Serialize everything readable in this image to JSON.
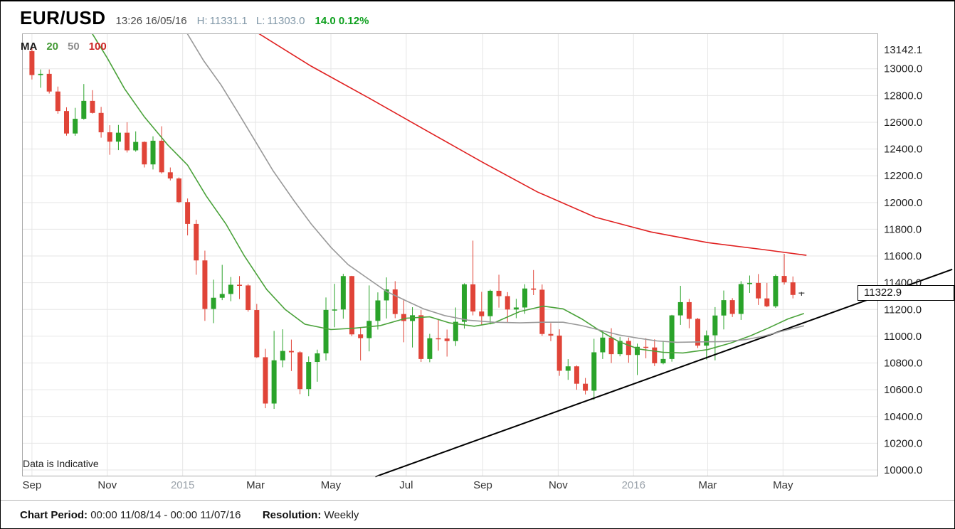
{
  "header": {
    "symbol": "EUR/USD",
    "timestamp": "13:26 16/05/16",
    "high_label": "H:",
    "high": "11331.1",
    "low_label": "L:",
    "low": "11303.0",
    "change": "14.0",
    "change_pct": "0.12%"
  },
  "legend": {
    "ma_label": "MA",
    "periods": [
      {
        "label": "20",
        "color": "#449a35"
      },
      {
        "label": "50",
        "color": "#8c8c8c"
      },
      {
        "label": "100",
        "color": "#cc2424"
      }
    ]
  },
  "watermark": "Data is Indicative",
  "price_tag": "11322.9",
  "footer": {
    "period_label": "Chart Period:",
    "period_value": "00:00 11/08/14 - 00:00 11/07/16",
    "resolution_label": "Resolution:",
    "resolution_value": "Weekly"
  },
  "chart_data": {
    "type": "candlestick",
    "symbol": "EUR/USD",
    "resolution": "Weekly",
    "last_price": 11322.9,
    "x_axis": {
      "start": "2014-08-24",
      "end": "2016-07-17",
      "ticks": [
        {
          "label": "Sep",
          "date": "2014-09-01",
          "muted": false
        },
        {
          "label": "Nov",
          "date": "2014-11-01",
          "muted": false
        },
        {
          "label": "2015",
          "date": "2015-01-01",
          "muted": true
        },
        {
          "label": "Mar",
          "date": "2015-03-01",
          "muted": false
        },
        {
          "label": "May",
          "date": "2015-05-01",
          "muted": false
        },
        {
          "label": "Jul",
          "date": "2015-07-01",
          "muted": false
        },
        {
          "label": "Sep",
          "date": "2015-09-01",
          "muted": false
        },
        {
          "label": "Nov",
          "date": "2015-11-01",
          "muted": false
        },
        {
          "label": "2016",
          "date": "2016-01-01",
          "muted": true
        },
        {
          "label": "Mar",
          "date": "2016-03-01",
          "muted": false
        },
        {
          "label": "May",
          "date": "2016-05-01",
          "muted": false
        }
      ]
    },
    "y_axis": {
      "labels": [
        "13142.1",
        "13000.0",
        "12800.0",
        "12600.0",
        "12400.0",
        "12200.0",
        "12000.0",
        "11800.0",
        "11600.0",
        "11400.0",
        "11200.0",
        "11000.0",
        "10800.0",
        "10600.0",
        "10400.0",
        "10200.0",
        "10000.0"
      ]
    },
    "candles": [
      [
        "2014-09-01",
        13132,
        13160,
        12920,
        12953
      ],
      [
        "2014-09-08",
        12953,
        12995,
        12858,
        12962
      ],
      [
        "2014-09-15",
        12962,
        12995,
        12815,
        12830
      ],
      [
        "2014-09-22",
        12830,
        12867,
        12664,
        12684
      ],
      [
        "2014-09-29",
        12684,
        12712,
        12500,
        12516
      ],
      [
        "2014-10-06",
        12516,
        12708,
        12499,
        12626
      ],
      [
        "2014-10-13",
        12626,
        12886,
        12619,
        12760
      ],
      [
        "2014-10-20",
        12760,
        12840,
        12665,
        12670
      ],
      [
        "2014-10-27",
        12670,
        12715,
        12485,
        12525
      ],
      [
        "2014-11-03",
        12525,
        12578,
        12357,
        12455
      ],
      [
        "2014-11-10",
        12455,
        12580,
        12392,
        12522
      ],
      [
        "2014-11-17",
        12522,
        12600,
        12374,
        12390
      ],
      [
        "2014-11-24",
        12390,
        12532,
        12380,
        12453
      ],
      [
        "2014-12-01",
        12453,
        12457,
        12262,
        12285
      ],
      [
        "2014-12-08",
        12285,
        12495,
        12247,
        12462
      ],
      [
        "2014-12-15",
        12462,
        12570,
        12216,
        12226
      ],
      [
        "2014-12-22",
        12226,
        12262,
        12165,
        12180
      ],
      [
        "2014-12-29",
        12180,
        12188,
        11996,
        12003
      ],
      [
        "2015-01-05",
        12003,
        12030,
        11754,
        11840
      ],
      [
        "2015-01-12",
        11840,
        11871,
        11460,
        11567
      ],
      [
        "2015-01-19",
        11567,
        11640,
        11115,
        11204
      ],
      [
        "2015-01-26",
        11204,
        11423,
        11098,
        11288
      ],
      [
        "2015-02-02",
        11288,
        11534,
        11270,
        11316
      ],
      [
        "2015-02-09",
        11316,
        11443,
        11262,
        11385
      ],
      [
        "2015-02-16",
        11385,
        11450,
        11278,
        11380
      ],
      [
        "2015-02-23",
        11380,
        11390,
        11184,
        11196
      ],
      [
        "2015-03-02",
        11196,
        11242,
        10838,
        10843
      ],
      [
        "2015-03-09",
        10843,
        10906,
        10462,
        10497
      ],
      [
        "2015-03-16",
        10497,
        11040,
        10457,
        10820
      ],
      [
        "2015-03-23",
        10820,
        11052,
        10768,
        10890
      ],
      [
        "2015-03-30",
        10890,
        10975,
        10740,
        10880
      ],
      [
        "2015-04-06",
        10880,
        10888,
        10567,
        10605
      ],
      [
        "2015-04-13",
        10605,
        10849,
        10552,
        10808
      ],
      [
        "2015-04-20",
        10808,
        10900,
        10660,
        10872
      ],
      [
        "2015-04-27",
        10872,
        11290,
        10819,
        11197
      ],
      [
        "2015-05-04",
        11197,
        11392,
        11067,
        11200
      ],
      [
        "2015-05-11",
        11200,
        11467,
        11131,
        11450
      ],
      [
        "2015-05-18",
        11450,
        11452,
        11000,
        11014
      ],
      [
        "2015-05-25",
        11014,
        11064,
        10819,
        10986
      ],
      [
        "2015-06-01",
        10986,
        11380,
        10887,
        11115
      ],
      [
        "2015-06-08",
        11115,
        11328,
        11050,
        11268
      ],
      [
        "2015-06-15",
        11268,
        11440,
        11133,
        11350
      ],
      [
        "2015-06-22",
        11350,
        11412,
        11135,
        11166
      ],
      [
        "2015-06-29",
        11166,
        11279,
        10955,
        11114
      ],
      [
        "2015-07-06",
        11114,
        11217,
        10916,
        11157
      ],
      [
        "2015-07-13",
        11157,
        11196,
        10808,
        10830
      ],
      [
        "2015-07-20",
        10830,
        11018,
        10806,
        10985
      ],
      [
        "2015-07-27",
        10985,
        11129,
        10892,
        10983
      ],
      [
        "2015-08-03",
        10983,
        11050,
        10848,
        10964
      ],
      [
        "2015-08-10",
        10964,
        11215,
        10927,
        11108
      ],
      [
        "2015-08-17",
        11108,
        11396,
        11057,
        11388
      ],
      [
        "2015-08-24",
        11388,
        11715,
        11156,
        11185
      ],
      [
        "2015-08-31",
        11185,
        11332,
        11087,
        11150
      ],
      [
        "2015-09-07",
        11150,
        11348,
        11089,
        11340
      ],
      [
        "2015-09-14",
        11340,
        11460,
        11214,
        11300
      ],
      [
        "2015-09-21",
        11300,
        11330,
        11105,
        11200
      ],
      [
        "2015-09-28",
        11200,
        11280,
        11135,
        11215
      ],
      [
        "2015-10-05",
        11215,
        11389,
        11168,
        11357
      ],
      [
        "2015-10-12",
        11357,
        11495,
        11308,
        11348
      ],
      [
        "2015-10-19",
        11348,
        11387,
        11003,
        11017
      ],
      [
        "2015-10-26",
        11017,
        11098,
        10963,
        11005
      ],
      [
        "2015-11-02",
        11005,
        11052,
        10704,
        10742
      ],
      [
        "2015-11-09",
        10742,
        10829,
        10674,
        10775
      ],
      [
        "2015-11-16",
        10775,
        10782,
        10600,
        10645
      ],
      [
        "2015-11-23",
        10645,
        10688,
        10565,
        10593
      ],
      [
        "2015-11-30",
        10593,
        10981,
        10524,
        10880
      ],
      [
        "2015-12-07",
        10880,
        11043,
        10830,
        10990
      ],
      [
        "2015-12-14",
        10990,
        11060,
        10800,
        10866
      ],
      [
        "2015-12-21",
        10866,
        10995,
        10850,
        10965
      ],
      [
        "2015-12-28",
        10965,
        10990,
        10802,
        10860
      ],
      [
        "2016-01-04",
        10860,
        10945,
        10710,
        10921
      ],
      [
        "2016-01-11",
        10921,
        10985,
        10835,
        10916
      ],
      [
        "2016-01-18",
        10916,
        10977,
        10777,
        10798
      ],
      [
        "2016-01-25",
        10798,
        10966,
        10790,
        10830
      ],
      [
        "2016-02-01",
        10830,
        11160,
        10810,
        11156
      ],
      [
        "2016-02-08",
        11156,
        11377,
        11085,
        11255
      ],
      [
        "2016-02-15",
        11255,
        11279,
        11060,
        11130
      ],
      [
        "2016-02-22",
        11130,
        11137,
        10912,
        10930
      ],
      [
        "2016-02-29",
        10930,
        11043,
        10826,
        11007
      ],
      [
        "2016-03-07",
        11007,
        11218,
        10820,
        11155
      ],
      [
        "2016-03-14",
        11155,
        11342,
        11051,
        11270
      ],
      [
        "2016-03-21",
        11270,
        11285,
        11144,
        11167
      ],
      [
        "2016-03-28",
        11167,
        11412,
        11122,
        11390
      ],
      [
        "2016-04-04",
        11390,
        11454,
        11324,
        11399
      ],
      [
        "2016-04-11",
        11399,
        11465,
        11234,
        11283
      ],
      [
        "2016-04-18",
        11283,
        11399,
        11217,
        11224
      ],
      [
        "2016-04-25",
        11224,
        11461,
        11212,
        11451
      ],
      [
        "2016-05-02",
        11451,
        11616,
        11386,
        11403
      ],
      [
        "2016-05-09",
        11403,
        11447,
        11283,
        11309
      ],
      [
        "2016-05-16",
        11309,
        11331,
        11303,
        11323
      ]
    ],
    "moving_averages": [
      {
        "period": 20,
        "color": "#4aa23a",
        "points": [
          [
            "2014-10-18",
            13290
          ],
          [
            "2014-11-01",
            13080
          ],
          [
            "2014-11-15",
            12850
          ],
          [
            "2014-12-01",
            12640
          ],
          [
            "2014-12-20",
            12430
          ],
          [
            "2015-01-05",
            12280
          ],
          [
            "2015-01-20",
            12050
          ],
          [
            "2015-02-05",
            11840
          ],
          [
            "2015-02-20",
            11600
          ],
          [
            "2015-03-10",
            11350
          ],
          [
            "2015-03-25",
            11200
          ],
          [
            "2015-04-10",
            11090
          ],
          [
            "2015-05-01",
            11050
          ],
          [
            "2015-05-20",
            11060
          ],
          [
            "2015-06-10",
            11080
          ],
          [
            "2015-07-01",
            11135
          ],
          [
            "2015-07-20",
            11145
          ],
          [
            "2015-08-05",
            11100
          ],
          [
            "2015-08-25",
            11075
          ],
          [
            "2015-09-10",
            11100
          ],
          [
            "2015-10-01",
            11185
          ],
          [
            "2015-10-20",
            11225
          ],
          [
            "2015-11-05",
            11205
          ],
          [
            "2015-11-20",
            11130
          ],
          [
            "2015-12-05",
            11040
          ],
          [
            "2015-12-20",
            10960
          ],
          [
            "2016-01-05",
            10905
          ],
          [
            "2016-01-25",
            10880
          ],
          [
            "2016-02-10",
            10875
          ],
          [
            "2016-03-01",
            10900
          ],
          [
            "2016-03-20",
            10950
          ],
          [
            "2016-04-05",
            11005
          ],
          [
            "2016-04-20",
            11065
          ],
          [
            "2016-05-05",
            11130
          ],
          [
            "2016-05-18",
            11170
          ]
        ]
      },
      {
        "period": 50,
        "color": "#999999",
        "points": [
          [
            "2015-01-03",
            13290
          ],
          [
            "2015-01-18",
            13060
          ],
          [
            "2015-02-01",
            12880
          ],
          [
            "2015-02-15",
            12670
          ],
          [
            "2015-03-01",
            12455
          ],
          [
            "2015-03-15",
            12240
          ],
          [
            "2015-04-01",
            12015
          ],
          [
            "2015-04-15",
            11840
          ],
          [
            "2015-05-01",
            11665
          ],
          [
            "2015-05-15",
            11535
          ],
          [
            "2015-06-01",
            11425
          ],
          [
            "2015-06-15",
            11335
          ],
          [
            "2015-07-01",
            11265
          ],
          [
            "2015-07-15",
            11205
          ],
          [
            "2015-08-01",
            11155
          ],
          [
            "2015-08-20",
            11120
          ],
          [
            "2015-09-10",
            11105
          ],
          [
            "2015-10-01",
            11100
          ],
          [
            "2015-10-20",
            11105
          ],
          [
            "2015-11-05",
            11105
          ],
          [
            "2015-11-20",
            11080
          ],
          [
            "2015-12-05",
            11045
          ],
          [
            "2015-12-20",
            11010
          ],
          [
            "2016-01-05",
            10985
          ],
          [
            "2016-01-20",
            10965
          ],
          [
            "2016-02-05",
            10955
          ],
          [
            "2016-02-25",
            10958
          ],
          [
            "2016-03-15",
            10960
          ],
          [
            "2016-04-01",
            10975
          ],
          [
            "2016-04-15",
            11000
          ],
          [
            "2016-05-01",
            11040
          ],
          [
            "2016-05-18",
            11078
          ]
        ]
      },
      {
        "period": 100,
        "color": "#e02020",
        "points": [
          [
            "2015-02-27",
            13290
          ],
          [
            "2015-04-15",
            13020
          ],
          [
            "2015-06-01",
            12780
          ],
          [
            "2015-07-15",
            12550
          ],
          [
            "2015-09-01",
            12300
          ],
          [
            "2015-10-15",
            12080
          ],
          [
            "2015-12-01",
            11890
          ],
          [
            "2016-01-15",
            11780
          ],
          [
            "2016-03-01",
            11700
          ],
          [
            "2016-04-15",
            11648
          ],
          [
            "2016-05-20",
            11605
          ]
        ]
      }
    ],
    "trendline": {
      "color": "#000000",
      "points": [
        [
          "2015-06-06",
          9950
        ],
        [
          "2016-09-15",
          11500
        ]
      ]
    },
    "colors": {
      "up": "#2aa32a",
      "down": "#e04438",
      "doji": "#3c3c3c",
      "grid": "#e6e6e6",
      "border": "#aaaaaa"
    }
  }
}
